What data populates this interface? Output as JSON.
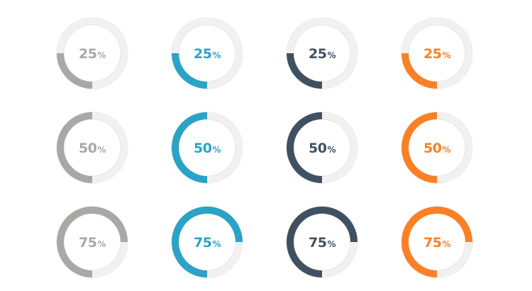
{
  "dials": [
    {
      "value": 0.25,
      "label": "25",
      "unit": "%",
      "color": "#a8a8a6"
    },
    {
      "value": 0.25,
      "label": "25",
      "unit": "%",
      "color": "#2aa3c6"
    },
    {
      "value": 0.25,
      "label": "25",
      "unit": "%",
      "color": "#3f5161"
    },
    {
      "value": 0.25,
      "label": "25",
      "unit": "%",
      "color": "#fb8025"
    },
    {
      "value": 0.5,
      "label": "50",
      "unit": "%",
      "color": "#a8a8a6"
    },
    {
      "value": 0.5,
      "label": "50",
      "unit": "%",
      "color": "#2aa3c6"
    },
    {
      "value": 0.5,
      "label": "50",
      "unit": "%",
      "color": "#3f5161"
    },
    {
      "value": 0.5,
      "label": "50",
      "unit": "%",
      "color": "#fb8025"
    },
    {
      "value": 0.75,
      "label": "75",
      "unit": "%",
      "color": "#a8a8a6"
    },
    {
      "value": 0.75,
      "label": "75",
      "unit": "%",
      "color": "#2aa3c6"
    },
    {
      "value": 0.75,
      "label": "75",
      "unit": "%",
      "color": "#3f5161"
    },
    {
      "value": 0.75,
      "label": "75",
      "unit": "%",
      "color": "#fb8025"
    }
  ],
  "track_color": "#f1f1f1",
  "track_border_color": "#e6e6e6",
  "direction": "counterclockwise-from-bottom"
}
